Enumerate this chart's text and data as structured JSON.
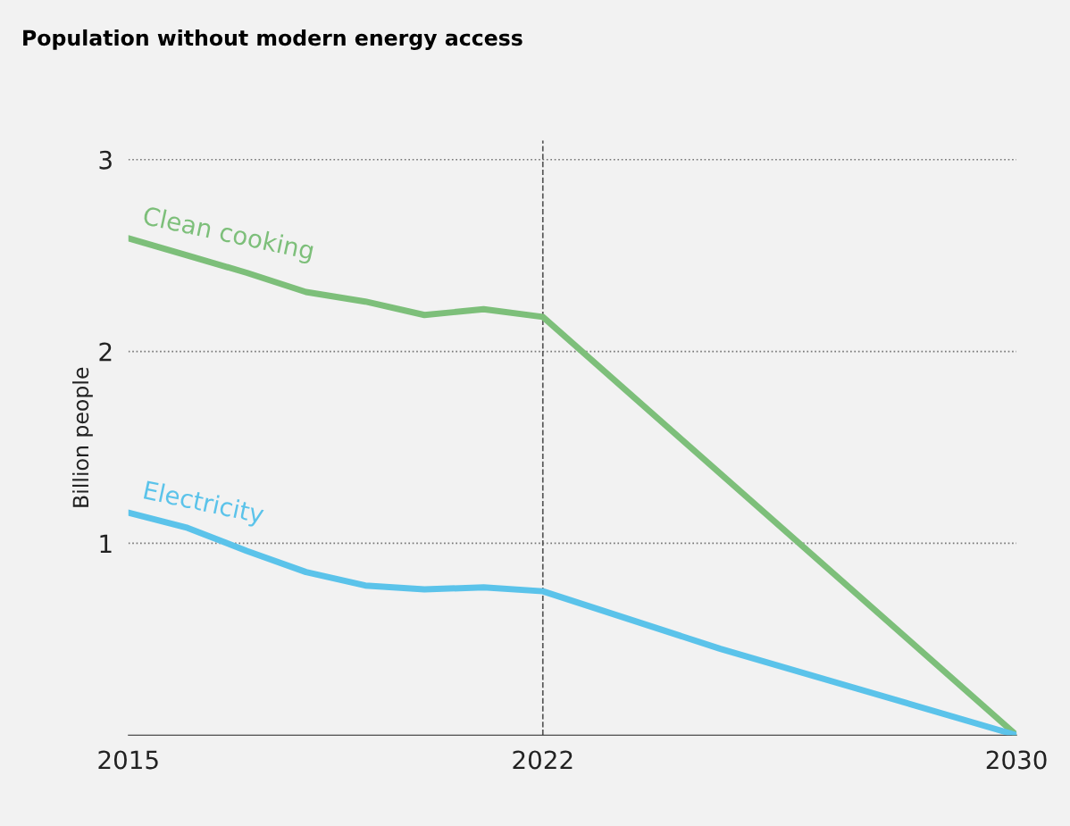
{
  "chart_data": {
    "type": "line",
    "title": "Population without modern energy access",
    "ylabel": "Billion people",
    "series": [
      {
        "name": "Clean cooking",
        "color": "#7dbf7a",
        "x": [
          2015,
          2016,
          2017,
          2018,
          2019,
          2020,
          2021,
          2022,
          2030
        ],
        "values": [
          2.59,
          2.5,
          2.41,
          2.31,
          2.26,
          2.19,
          2.22,
          2.18,
          0
        ]
      },
      {
        "name": "Electricity",
        "color": "#5bc3ea",
        "x": [
          2015,
          2016,
          2017,
          2018,
          2019,
          2020,
          2021,
          2022,
          2025,
          2030
        ],
        "values": [
          1.16,
          1.08,
          0.96,
          0.85,
          0.78,
          0.76,
          0.77,
          0.75,
          0.45,
          0
        ]
      }
    ],
    "xlim": [
      2015,
      2030
    ],
    "xticks": [
      2015,
      2022,
      2030
    ],
    "ylim": [
      0,
      3.1
    ],
    "yticks": [
      1,
      2,
      3
    ],
    "ref_lines": [
      {
        "axis": "x",
        "value": 2022,
        "color": "#555555",
        "line_style": "dashed"
      }
    ],
    "grid": "y",
    "legend": false,
    "marker": "none",
    "line_style": "solid"
  }
}
